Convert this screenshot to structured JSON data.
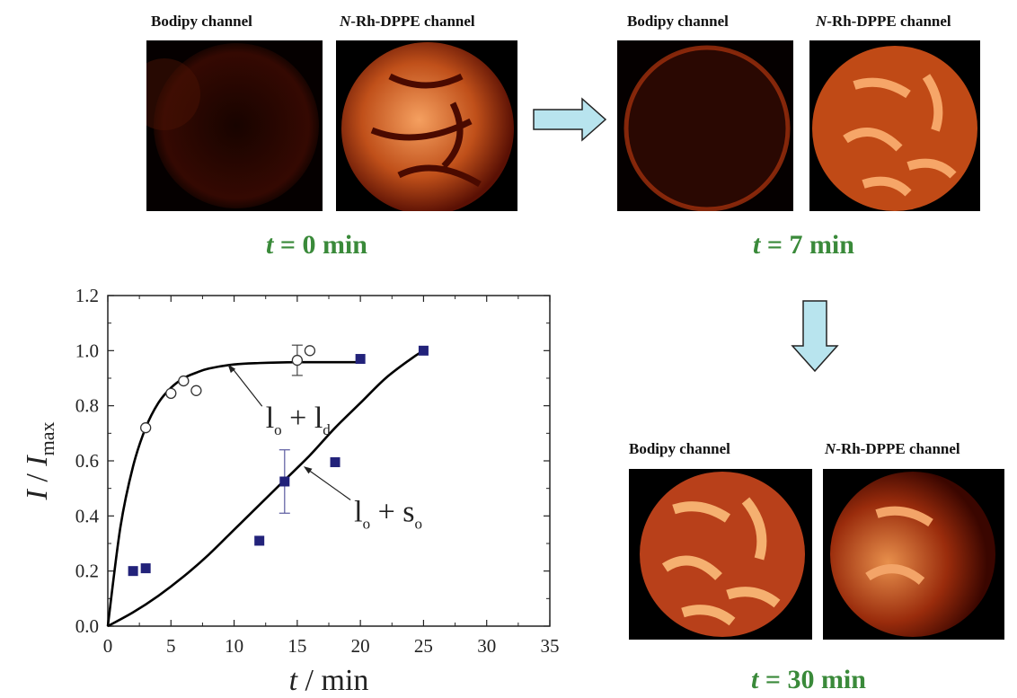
{
  "panels": [
    {
      "time_label": "t = 0 min",
      "images": [
        {
          "title": "Bodipy channel"
        },
        {
          "title": "N-Rh-DPPE channel"
        }
      ]
    },
    {
      "time_label": "t = 7 min",
      "images": [
        {
          "title": "Bodipy channel"
        },
        {
          "title": "N-Rh-DPPE channel"
        }
      ]
    },
    {
      "time_label": "t = 30 min",
      "images": [
        {
          "title": "Bodipy channel"
        },
        {
          "title": "N-Rh-DPPE channel"
        }
      ]
    }
  ],
  "colors": {
    "time_label": "#3a8a3a",
    "arrow_fill": "#b8e4ee",
    "square_marker": "#22227a",
    "curve": "#000000"
  },
  "chart_data": {
    "type": "scatter",
    "title": "",
    "xlabel": "t / min",
    "ylabel": "I / Imax",
    "xlim": [
      0,
      35
    ],
    "ylim": [
      0,
      1.2
    ],
    "xticks": [
      0,
      5,
      10,
      15,
      20,
      25,
      30,
      35
    ],
    "yticks": [
      0.0,
      0.2,
      0.4,
      0.6,
      0.8,
      1.0,
      1.2
    ],
    "xtick_labels": [
      "0",
      "5",
      "10",
      "15",
      "20",
      "25",
      "30",
      "35"
    ],
    "ytick_labels": [
      "0.0",
      "0.2",
      "0.4",
      "0.6",
      "0.8",
      "1.0",
      "1.2"
    ],
    "series": [
      {
        "name": "lo + ld",
        "marker": "open-circle",
        "points": [
          [
            0,
            0.0
          ],
          [
            3,
            0.72
          ],
          [
            5,
            0.845
          ],
          [
            6,
            0.89
          ],
          [
            7,
            0.855
          ],
          [
            15,
            0.965
          ],
          [
            16,
            1.0
          ]
        ],
        "error_bars": [
          {
            "x": 15,
            "y": 0.965,
            "err": 0.055
          }
        ],
        "fit": [
          [
            0,
            0.0
          ],
          [
            1,
            0.36
          ],
          [
            2,
            0.58
          ],
          [
            3,
            0.72
          ],
          [
            4,
            0.81
          ],
          [
            5,
            0.865
          ],
          [
            6,
            0.9
          ],
          [
            7,
            0.92
          ],
          [
            8,
            0.935
          ],
          [
            10,
            0.95
          ],
          [
            12,
            0.955
          ],
          [
            15,
            0.958
          ],
          [
            18,
            0.958
          ],
          [
            20,
            0.958
          ]
        ]
      },
      {
        "name": "lo + so",
        "marker": "filled-square",
        "points": [
          [
            0,
            0.0
          ],
          [
            2,
            0.2
          ],
          [
            3,
            0.21
          ],
          [
            12,
            0.31
          ],
          [
            14,
            0.525
          ],
          [
            18,
            0.595
          ],
          [
            20,
            0.97
          ],
          [
            25,
            1.0
          ]
        ],
        "error_bars": [
          {
            "x": 14,
            "y": 0.525,
            "err": 0.115
          }
        ],
        "fit": [
          [
            0,
            0.0
          ],
          [
            2,
            0.05
          ],
          [
            4,
            0.11
          ],
          [
            6,
            0.18
          ],
          [
            8,
            0.26
          ],
          [
            10,
            0.35
          ],
          [
            12,
            0.44
          ],
          [
            14,
            0.53
          ],
          [
            16,
            0.62
          ],
          [
            18,
            0.72
          ],
          [
            20,
            0.81
          ],
          [
            22,
            0.9
          ],
          [
            24,
            0.97
          ],
          [
            25,
            1.0
          ]
        ]
      }
    ],
    "annotations": [
      {
        "text": "lo + ld",
        "sub1": "o",
        "sub2": "d",
        "base1": "l",
        "base2": "l",
        "series": "lo + ld",
        "points_to": [
          9.5,
          0.95
        ]
      },
      {
        "text": "lo + so",
        "sub1": "o",
        "sub2": "o",
        "base1": "l",
        "base2": "s",
        "series": "lo + so",
        "points_to": [
          15.5,
          0.58
        ]
      }
    ]
  }
}
